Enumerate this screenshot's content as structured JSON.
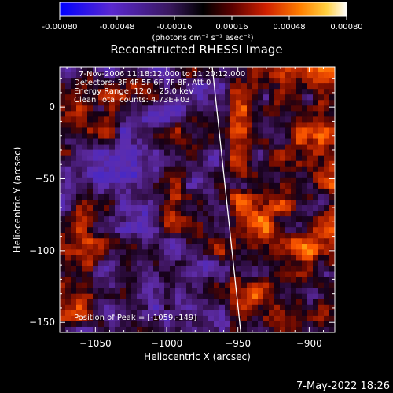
{
  "colorbar": {
    "ticks": [
      "-0.00080",
      "-0.00048",
      "-0.00016",
      "0.00016",
      "0.00048",
      "0.00080"
    ],
    "tick_values": [
      -0.0008,
      -0.00048,
      -0.00016,
      0.00016,
      0.00048,
      0.0008
    ],
    "range": [
      -0.0008,
      0.0008
    ],
    "unit_label": "(photons cm⁻² s⁻¹ asec⁻²)"
  },
  "chart_data": {
    "type": "heatmap",
    "title": "Reconstructed RHESSI Image",
    "xlabel": "Heliocentric X (arcsec)",
    "ylabel": "Heliocentric Y (arcsec)",
    "xlim": [
      -1075,
      -882
    ],
    "ylim": [
      -157,
      28
    ],
    "x_ticks": [
      -1050,
      -1000,
      -950,
      -900
    ],
    "y_ticks": [
      0,
      -50,
      -100,
      -150
    ],
    "colormap": [
      "#0000ff",
      "#6a2fb0",
      "#1a001a",
      "#8b1a00",
      "#ff4000",
      "#ff9900",
      "#ffff60",
      "#ffffff"
    ],
    "limb_line": [
      [
        -968,
        28
      ],
      [
        -948,
        -157
      ]
    ],
    "annotations": [
      "7-Nov-2006 11:18:12.000 to 11:20:12.000",
      "Detectors: 3F 4F 5F 6F 7F 8F, Att 0",
      "Energy Range: 12.0 - 25.0 keV",
      "Clean    Total counts: 4.73E+03"
    ],
    "peak_label": "Position of Peak = [-1059,-149]"
  },
  "footer": {
    "timestamp": "7-May-2022 18:26"
  }
}
